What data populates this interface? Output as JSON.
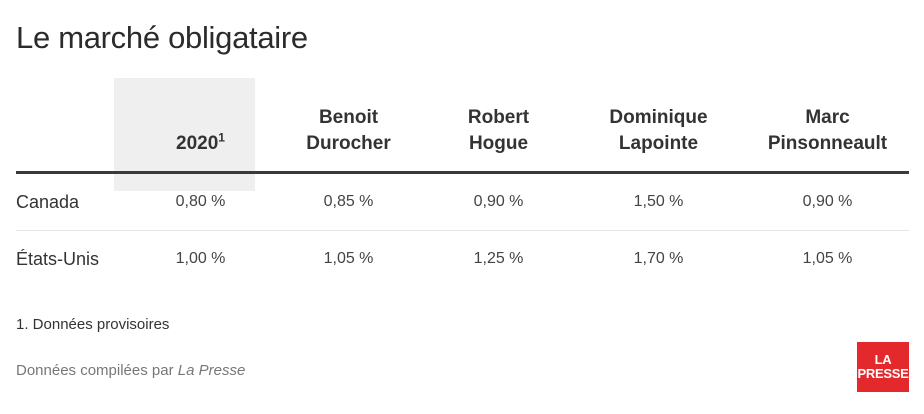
{
  "title": "Le marché obligataire",
  "chart_data": {
    "type": "table",
    "columns": [
      {
        "label_lines": [
          "2020"
        ],
        "sup": "1"
      },
      {
        "label_lines": [
          "Benoit",
          "Durocher"
        ]
      },
      {
        "label_lines": [
          "Robert",
          "Hogue"
        ]
      },
      {
        "label_lines": [
          "Dominique",
          "Lapointe"
        ]
      },
      {
        "label_lines": [
          "Marc",
          "Pinsonneault"
        ]
      }
    ],
    "rows": [
      {
        "label": "Canada",
        "values": [
          "0,80 %",
          "0,85 %",
          "0,90 %",
          "1,50 %",
          "0,90 %"
        ]
      },
      {
        "label": "États-Unis",
        "values": [
          "1,00 %",
          "1,05 %",
          "1,25 %",
          "1,70 %",
          "1,05 %"
        ]
      }
    ],
    "highlight_column": 0,
    "highlight_color": "#efefef"
  },
  "footnote": "1. Données provisoires",
  "source": {
    "prefix": "Données compilées par ",
    "name": "La Presse"
  },
  "logo": {
    "line1": "LA",
    "line2": "PRESSE",
    "color": "#e3292c"
  }
}
